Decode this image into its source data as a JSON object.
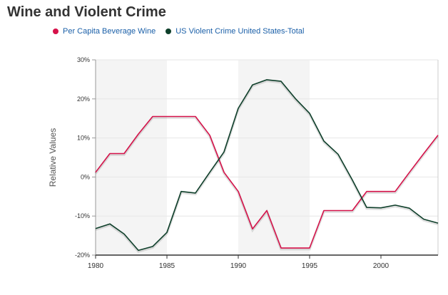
{
  "chart_data": {
    "type": "line",
    "title": "Wine and Violent Crime",
    "xlabel": "",
    "ylabel": "Relative Values",
    "xlim": [
      1980,
      2004
    ],
    "ylim": [
      -20,
      30
    ],
    "x_ticks": [
      1980,
      1985,
      1990,
      1995,
      2000
    ],
    "y_ticks": [
      30,
      20,
      10,
      0,
      -10,
      -20
    ],
    "y_tick_labels": [
      "30%",
      "20%",
      "10%",
      "0%",
      "-10%",
      "-20%"
    ],
    "grid": true,
    "shaded_bands": [
      [
        1980,
        1985
      ],
      [
        1990,
        1995
      ]
    ],
    "legend_position": "top",
    "series": [
      {
        "name": "Per Capita Beverage Wine",
        "color": "#d6124a",
        "x": [
          1980,
          1981,
          1982,
          1983,
          1984,
          1985,
          1986,
          1987,
          1988,
          1989,
          1990,
          1991,
          1992,
          1993,
          1994,
          1995,
          1996,
          1997,
          1998,
          1999,
          2000,
          2001,
          2002,
          2003,
          2004
        ],
        "values": [
          1.2,
          6,
          6,
          11,
          15.5,
          15.5,
          15.5,
          15.5,
          10.7,
          1.2,
          -3.7,
          -13.3,
          -8.6,
          -18.2,
          -18.2,
          -18.2,
          -8.6,
          -8.6,
          -8.6,
          -3.7,
          -3.7,
          -3.7,
          1.2,
          6,
          10.7
        ]
      },
      {
        "name": "US Violent Crime United States-Total",
        "color": "#0e3f2a",
        "x": [
          1980,
          1981,
          1982,
          1983,
          1984,
          1985,
          1986,
          1987,
          1988,
          1989,
          1990,
          1991,
          1992,
          1993,
          1994,
          1995,
          1996,
          1997,
          1998,
          1999,
          2000,
          2001,
          2002,
          2003,
          2004
        ],
        "values": [
          -13.2,
          -12,
          -14.6,
          -18.8,
          -17.8,
          -14.2,
          -3.7,
          -4.1,
          1.2,
          6.4,
          17.6,
          23.6,
          24.9,
          24.5,
          20.1,
          16.3,
          9.2,
          5.8,
          -0.8,
          -7.8,
          -7.9,
          -7.2,
          -8,
          -10.8,
          -11.8
        ]
      }
    ]
  }
}
